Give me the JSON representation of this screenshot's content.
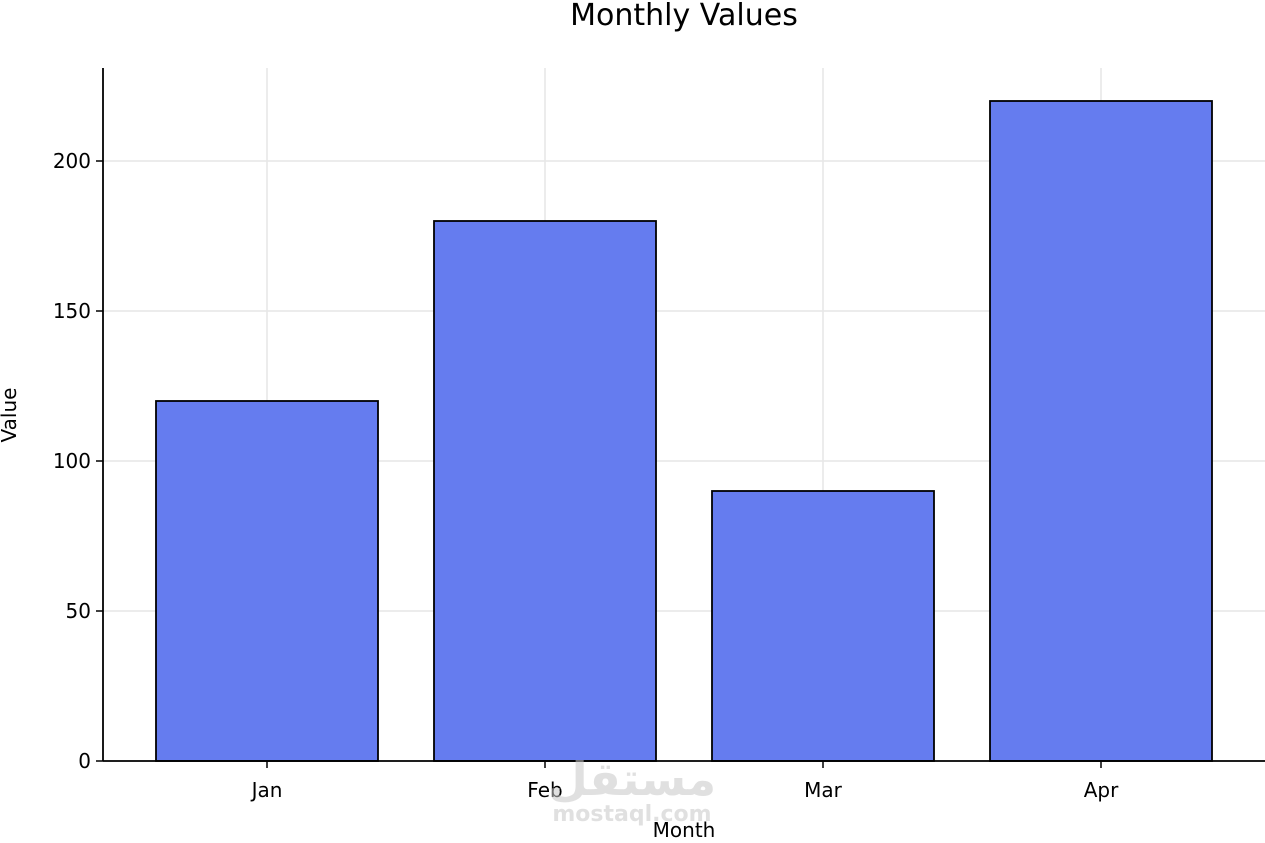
{
  "chart_data": {
    "type": "bar",
    "title": "Monthly Values",
    "xlabel": "Month",
    "ylabel": "Value",
    "categories": [
      "Jan",
      "Feb",
      "Mar",
      "Apr"
    ],
    "values": [
      120,
      180,
      90,
      220
    ],
    "ylim": [
      0,
      231
    ],
    "yticks": [
      0,
      50,
      100,
      150,
      200
    ],
    "grid": true,
    "colors": {
      "bar_fill": "#657cef",
      "bar_edge": "#000000",
      "grid": "#e6e6e6"
    }
  },
  "watermark": {
    "arabic": "مستقل",
    "latin": "mostaql.com"
  }
}
